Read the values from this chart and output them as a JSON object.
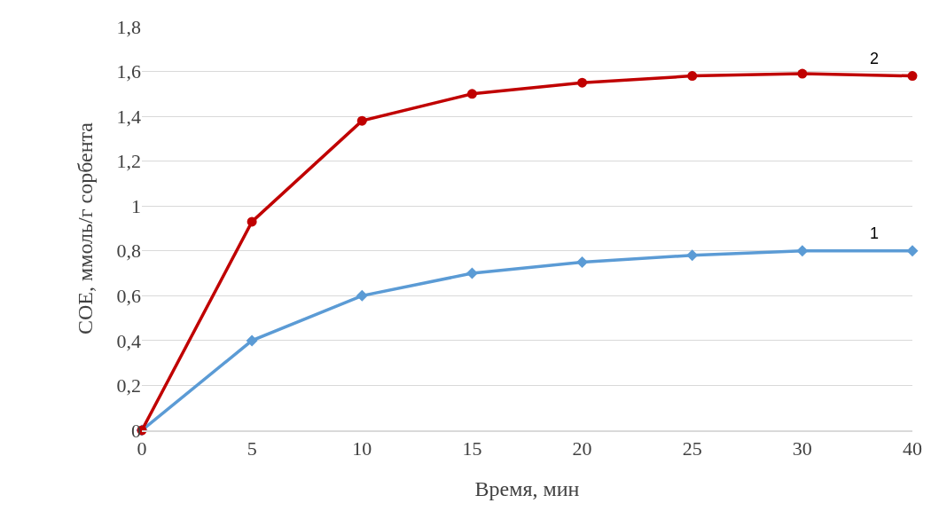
{
  "chart_data": {
    "type": "line",
    "xlabel": "Время, мин",
    "ylabel": "СОЕ, ммоль/г сорбента",
    "categories": [
      "0",
      "5",
      "10",
      "15",
      "20",
      "25",
      "30",
      "40"
    ],
    "series": [
      {
        "name": "1",
        "color": "#5b9bd5",
        "marker": "diamond",
        "values": [
          0,
          0.4,
          0.6,
          0.7,
          0.75,
          0.78,
          0.8,
          0.8
        ]
      },
      {
        "name": "2",
        "color": "#c00000",
        "marker": "circle",
        "values": [
          0,
          0.93,
          1.38,
          1.5,
          1.55,
          1.58,
          1.59,
          1.58
        ]
      }
    ],
    "ylim": [
      0,
      1.8
    ],
    "yticks": [
      0,
      {
        "value": 0.2,
        "label": "0,2"
      },
      {
        "value": 0.4,
        "label": "0,4"
      },
      {
        "value": 0.6,
        "label": "0,6"
      },
      {
        "value": 0.8,
        "label": "0,8"
      },
      1,
      {
        "value": 1.2,
        "label": "1,2"
      },
      {
        "value": 1.4,
        "label": "1,4"
      },
      {
        "value": 1.6,
        "label": "1,6"
      },
      {
        "value": 1.8,
        "label": "1,8"
      }
    ],
    "grid": "y",
    "legend": false,
    "line_style": "solid"
  }
}
